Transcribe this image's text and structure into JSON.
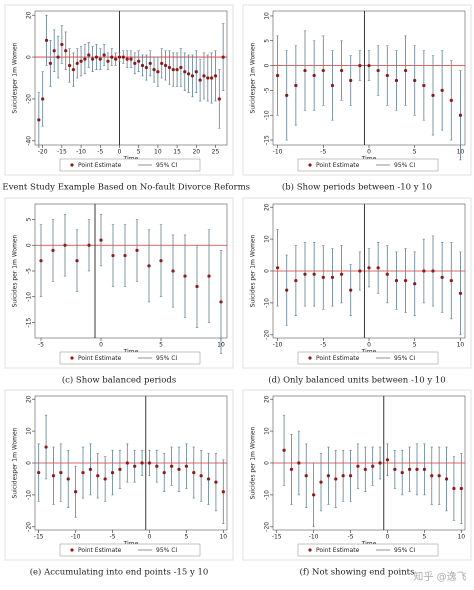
{
  "chart_data": [
    {
      "type": "errorbar",
      "caption": "(a) Event Study Example Based on No-fault Divorce Reforms",
      "xlabel": "Time",
      "ylabel": "Suicidesper 1m Women",
      "x": [
        -21,
        -20,
        -19,
        -18,
        -17,
        -16,
        -15,
        -14,
        -13,
        -12,
        -11,
        -10,
        -9,
        -8,
        -7,
        -6,
        -5,
        -4,
        -3,
        -2,
        -1,
        0,
        1,
        2,
        3,
        4,
        5,
        6,
        7,
        8,
        9,
        10,
        11,
        12,
        13,
        14,
        15,
        16,
        17,
        18,
        19,
        20,
        21,
        22,
        23,
        24,
        25,
        26,
        27
      ],
      "series": [
        {
          "name": "Point Estimate",
          "color": "#8b1a1a",
          "values": [
            -30,
            -20,
            8,
            -3,
            3,
            0,
            6,
            3,
            -4,
            -6,
            -3,
            -2,
            -1,
            1,
            -1,
            0,
            -1,
            1,
            -2,
            0,
            -1,
            0,
            0,
            -1,
            -1,
            -3,
            -2,
            -4,
            -5,
            -3,
            -6,
            -7,
            -3,
            -4,
            -5,
            -6,
            -6,
            -5,
            -7,
            -8,
            -9,
            -7,
            -11,
            -9,
            -10,
            -10,
            -9,
            -20,
            0
          ],
          "errors": [
            13,
            13,
            12,
            11,
            10,
            10,
            9,
            9,
            8,
            8,
            7,
            7,
            7,
            6,
            6,
            6,
            5,
            5,
            4,
            4,
            3,
            2,
            3,
            4,
            4,
            5,
            5,
            5,
            6,
            6,
            6,
            7,
            7,
            7,
            8,
            8,
            8,
            9,
            9,
            9,
            10,
            10,
            10,
            11,
            11,
            12,
            12,
            14,
            16
          ]
        }
      ],
      "ci_name": "95% CI",
      "ci_color": "#5f7f94",
      "vline": 0,
      "xlim": [
        -22,
        28
      ],
      "xticks": [
        -20,
        -15,
        -10,
        -5,
        0,
        5,
        10,
        15,
        20,
        25
      ],
      "ylim": [
        -42,
        22
      ],
      "yticks": [
        -40,
        -20,
        0,
        20
      ]
    },
    {
      "type": "errorbar",
      "caption": "(b) Show periods between -10 y 10",
      "xlabel": "Time",
      "ylabel": "Suicidesper 1m Women",
      "x": [
        -10,
        -9,
        -8,
        -7,
        -6,
        -5,
        -4,
        -3,
        -2,
        -1,
        0,
        1,
        2,
        3,
        4,
        5,
        6,
        7,
        8,
        9,
        10
      ],
      "series": [
        {
          "name": "Point Estimate",
          "color": "#8b1a1a",
          "values": [
            -2,
            -6,
            -4,
            -1,
            -2,
            -1,
            -4,
            -1,
            -3,
            0,
            0,
            -1,
            -2,
            -3,
            -1,
            -3,
            -4,
            -6,
            -5,
            -7,
            -10
          ],
          "errors": [
            8,
            9,
            8,
            8,
            7,
            7,
            7,
            6,
            5,
            3,
            3,
            5,
            6,
            6,
            7,
            7,
            7,
            8,
            8,
            8,
            9
          ]
        }
      ],
      "ci_name": "95% CI",
      "ci_color": "#5f7f94",
      "vline": -0.5,
      "xlim": [
        -10.5,
        10.5
      ],
      "xticks": [
        -10,
        -5,
        0,
        5,
        10
      ],
      "ylim": [
        -16,
        11
      ],
      "yticks": [
        -15,
        -10,
        -5,
        0,
        5,
        10
      ]
    },
    {
      "type": "errorbar",
      "caption": "(c) Show balanced periods",
      "xlabel": "Time",
      "ylabel": "Suicides per 1m Women",
      "x": [
        -5,
        -4,
        -3,
        -2,
        -1,
        0,
        1,
        2,
        3,
        4,
        5,
        6,
        7,
        8,
        9,
        10
      ],
      "series": [
        {
          "name": "Point Estimate",
          "color": "#8b1a1a",
          "values": [
            -3,
            -1,
            0,
            -3,
            0,
            1,
            -2,
            -2,
            -1,
            -4,
            -3,
            -5,
            -6,
            -8,
            -6,
            -11
          ],
          "errors": [
            7,
            6,
            6,
            6,
            5,
            5,
            6,
            6,
            6,
            7,
            7,
            7,
            8,
            8,
            9,
            10
          ]
        }
      ],
      "ci_name": "95% CI",
      "ci_color": "#5f7f94",
      "vline": -0.5,
      "xlim": [
        -5.5,
        10.5
      ],
      "xticks": [
        -5,
        0,
        5,
        10
      ],
      "ylim": [
        -18,
        8
      ],
      "yticks": [
        -15,
        -10,
        -5,
        0,
        5
      ]
    },
    {
      "type": "errorbar",
      "caption": "(d) Only balanced units between -10 y 10",
      "xlabel": "Time",
      "ylabel": "Suicides per 1m Women",
      "x": [
        -10,
        -9,
        -8,
        -7,
        -6,
        -5,
        -4,
        -3,
        -2,
        -1,
        0,
        1,
        2,
        3,
        4,
        5,
        6,
        7,
        8,
        9,
        10
      ],
      "series": [
        {
          "name": "Point Estimate",
          "color": "#8b1a1a",
          "values": [
            1,
            -6,
            -3,
            -1,
            -1,
            -2,
            -2,
            -1,
            -6,
            0,
            1,
            1,
            -1,
            -3,
            -3,
            -4,
            0,
            0,
            -2,
            -3,
            -7
          ],
          "errors": [
            12,
            11,
            11,
            10,
            10,
            10,
            9,
            9,
            8,
            6,
            6,
            8,
            9,
            9,
            10,
            10,
            10,
            11,
            11,
            12,
            13
          ]
        }
      ],
      "ci_name": "95% CI",
      "ci_color": "#5f7f94",
      "vline": -0.5,
      "xlim": [
        -10.5,
        10.5
      ],
      "xticks": [
        -10,
        -5,
        0,
        5,
        10
      ],
      "ylim": [
        -21,
        21
      ],
      "yticks": [
        -20,
        -10,
        0,
        10,
        20
      ]
    },
    {
      "type": "errorbar",
      "caption": "(e) Accumulating into end points -15 y 10",
      "xlabel": "Time",
      "ylabel": "Suicidesper 1m Women",
      "x": [
        -15,
        -14,
        -13,
        -12,
        -11,
        -10,
        -9,
        -8,
        -7,
        -6,
        -5,
        -4,
        -3,
        -2,
        -1,
        0,
        1,
        2,
        3,
        4,
        5,
        6,
        7,
        8,
        9,
        10
      ],
      "series": [
        {
          "name": "Point Estimate",
          "color": "#8b1a1a",
          "values": [
            -3,
            5,
            -4,
            -3,
            -5,
            -9,
            -3,
            -2,
            -4,
            -5,
            -3,
            -2,
            0,
            -1,
            0,
            0,
            -1,
            -3,
            -1,
            -2,
            -1,
            -3,
            -4,
            -5,
            -6,
            -9
          ],
          "errors": [
            9,
            10,
            9,
            9,
            9,
            8,
            8,
            8,
            7,
            7,
            7,
            6,
            6,
            5,
            4,
            4,
            5,
            6,
            6,
            7,
            7,
            8,
            8,
            8,
            9,
            10
          ]
        }
      ],
      "ci_name": "95% CI",
      "ci_color": "#5f7f94",
      "vline": -0.5,
      "xlim": [
        -15.5,
        10.5
      ],
      "xticks": [
        -15,
        -10,
        -5,
        0,
        5,
        10
      ],
      "ylim": [
        -21,
        21
      ],
      "yticks": [
        -20,
        -10,
        0,
        10,
        20
      ]
    },
    {
      "type": "errorbar",
      "caption": "(f) Not showing end points",
      "xlabel": "Time",
      "ylabel": "Suicides per 1m Women",
      "x": [
        -14,
        -13,
        -12,
        -11,
        -10,
        -9,
        -8,
        -7,
        -6,
        -5,
        -4,
        -3,
        -2,
        -1,
        0,
        1,
        2,
        3,
        4,
        5,
        6,
        7,
        8,
        9,
        10
      ],
      "series": [
        {
          "name": "Point Estimate",
          "color": "#8b1a1a",
          "values": [
            4,
            -2,
            0,
            -4,
            -10,
            -6,
            -4,
            -5,
            -4,
            -4,
            -1,
            -2,
            -1,
            0,
            1,
            -2,
            -3,
            -2,
            -2,
            -2,
            -4,
            -4,
            -5,
            -8,
            -8
          ],
          "errors": [
            11,
            11,
            10,
            10,
            10,
            9,
            9,
            9,
            8,
            8,
            7,
            7,
            6,
            5,
            5,
            6,
            7,
            7,
            8,
            8,
            9,
            9,
            10,
            10,
            11
          ]
        }
      ],
      "ci_name": "95% CI",
      "ci_color": "#5f7f94",
      "vline": -0.5,
      "xlim": [
        -15.5,
        10.5
      ],
      "xticks": [
        -15,
        -10,
        -5,
        0,
        5,
        10
      ],
      "ylim": [
        -21,
        21
      ],
      "yticks": [
        -20,
        -10,
        0,
        10,
        20
      ]
    }
  ],
  "watermark": "知乎 @逸飞"
}
